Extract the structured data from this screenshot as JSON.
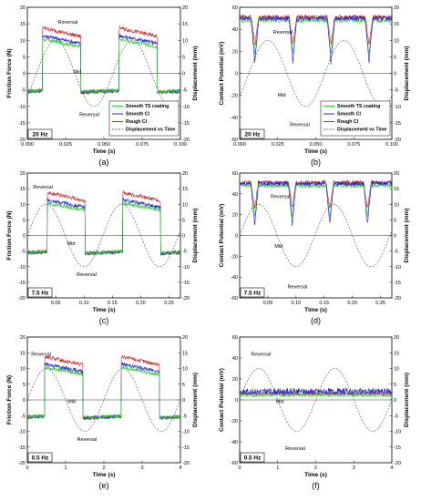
{
  "legend": [
    {
      "label": "Smooth TS coating",
      "color": "#33cc33",
      "dash": false
    },
    {
      "label": "Smooth CI",
      "color": "#2222cc",
      "dash": false
    },
    {
      "label": "Rough CI",
      "color": "#cc2222",
      "dash": false
    },
    {
      "label": "Displacement vs Time",
      "color": "#666666",
      "dash": true
    }
  ],
  "chart_data": [
    {
      "id": "a",
      "type": "line",
      "panel_label": "(a)",
      "freq_label": "20 Hz",
      "kind": "friction",
      "xlabel": "Time (s)",
      "ylabel": "Friction Force (N)",
      "y2label": "Displacement (mm)",
      "xlim": [
        0,
        0.1
      ],
      "ylim": [
        -20,
        20
      ],
      "y2lim": [
        -20,
        20
      ],
      "xticks": [
        "0.000",
        "0.025",
        "0.050",
        "0.075",
        "0.100"
      ],
      "yticks": [
        "-20",
        "-15",
        "-10",
        "-5",
        "0",
        "5",
        "10",
        "15",
        "20"
      ],
      "y2ticks": [
        "-20",
        "-15",
        "-10",
        "-5",
        "0",
        "5",
        "10",
        "15",
        "20"
      ],
      "period": 0.05,
      "disp_amp": 10,
      "phase": 0.006,
      "annotations": [
        {
          "text": "Reversal",
          "x": 0.02,
          "y": 15
        },
        {
          "text": "Mid",
          "x": 0.03,
          "y": 0
        },
        {
          "text": "Reversal",
          "x": 0.034,
          "y": -13
        }
      ],
      "legend": true
    },
    {
      "id": "b",
      "type": "line",
      "panel_label": "(b)",
      "freq_label": "20 Hz",
      "kind": "potential",
      "xlabel": "Time (s)",
      "ylabel": "Contact Potential (mV)",
      "y2label": "Displacement (mm)",
      "xlim": [
        0,
        0.1
      ],
      "ylim": [
        -60,
        60
      ],
      "y2lim": [
        -20,
        20
      ],
      "xticks": [
        "0.000",
        "0.025",
        "0.050",
        "0.075",
        "0.100"
      ],
      "yticks": [
        "-60",
        "-40",
        "-20",
        "0",
        "20",
        "40",
        "60"
      ],
      "y2ticks": [
        "-20",
        "-15",
        "-10",
        "-5",
        "0",
        "5",
        "10",
        "15",
        "20"
      ],
      "period": 0.05,
      "disp_amp": 10,
      "phase": 0.006,
      "annotations": [
        {
          "text": "Reversal",
          "x": 0.022,
          "y": 12
        },
        {
          "text": "Mid",
          "x": 0.025,
          "y": -7
        },
        {
          "text": "Reversal",
          "x": 0.033,
          "y": -16
        }
      ],
      "legend": true
    },
    {
      "id": "c",
      "type": "line",
      "panel_label": "(c)",
      "freq_label": "7.5 Hz",
      "kind": "friction",
      "xlabel": "Time (s)",
      "ylabel": "Friction Force (N)",
      "y2label": "Displacement (mm)",
      "xlim": [
        0,
        0.27
      ],
      "ylim": [
        -20,
        20
      ],
      "y2lim": [
        -20,
        20
      ],
      "xticks": [
        "0.05",
        "0.10",
        "0.15",
        "0.20",
        "0.25"
      ],
      "yticks": [
        "-20",
        "-15",
        "-10",
        "-5",
        "0",
        "5",
        "10",
        "15",
        "20"
      ],
      "y2ticks": [
        "-20",
        "-15",
        "-10",
        "-5",
        "0",
        "5",
        "10",
        "15",
        "20"
      ],
      "period": 0.1333,
      "disp_amp": 10,
      "phase": 0.0,
      "annotations": [
        {
          "text": "Reversal",
          "x": 0.01,
          "y": 15
        },
        {
          "text": "Mid",
          "x": 0.07,
          "y": -3
        },
        {
          "text": "Reversal",
          "x": 0.087,
          "y": -13
        }
      ],
      "legend": false
    },
    {
      "id": "d",
      "type": "line",
      "panel_label": "(d)",
      "freq_label": "7.5 Hz",
      "kind": "potential",
      "xlabel": "Time (s)",
      "ylabel": "Contact Potential (mV)",
      "y2label": "Displacement (mm)",
      "xlim": [
        0,
        0.27
      ],
      "ylim": [
        -60,
        60
      ],
      "y2lim": [
        -20,
        20
      ],
      "xticks": [
        "0.05",
        "0.10",
        "0.15",
        "0.20",
        "0.25"
      ],
      "yticks": [
        "-60",
        "-40",
        "-20",
        "0",
        "20",
        "40",
        "60"
      ],
      "y2ticks": [
        "-20",
        "-15",
        "-10",
        "-5",
        "0",
        "5",
        "10",
        "15",
        "20"
      ],
      "period": 0.1333,
      "disp_amp": 10,
      "phase": 0.0,
      "annotations": [
        {
          "text": "Reversal",
          "x": 0.055,
          "y": 12
        },
        {
          "text": "Mid",
          "x": 0.062,
          "y": -4
        },
        {
          "text": "Reversal",
          "x": 0.085,
          "y": -17
        }
      ],
      "legend": false
    },
    {
      "id": "e",
      "type": "line",
      "panel_label": "(e)",
      "freq_label": "0.5 Hz",
      "kind": "friction",
      "xlabel": "Time (s)",
      "ylabel": "Friction Force (N)",
      "y2label": "Displacement (mm)",
      "xlim": [
        0,
        4
      ],
      "ylim": [
        -20,
        20
      ],
      "y2lim": [
        -20,
        20
      ],
      "xticks": [
        "0",
        "1",
        "2",
        "3",
        "4"
      ],
      "yticks": [
        "-20",
        "-15",
        "-10",
        "-5",
        "0",
        "5",
        "10",
        "15",
        "20"
      ],
      "y2ticks": [
        "-20",
        "-15",
        "-10",
        "-5",
        "0",
        "5",
        "10",
        "15",
        "20"
      ],
      "period": 2.0,
      "disp_amp": 10,
      "phase": 0.0,
      "annotations": [
        {
          "text": "Reversal",
          "x": 0.1,
          "y": 14
        },
        {
          "text": "Mid",
          "x": 1.05,
          "y": -1
        },
        {
          "text": "Reversal",
          "x": 1.3,
          "y": -13
        }
      ],
      "legend": false
    },
    {
      "id": "f",
      "type": "line",
      "panel_label": "(f)",
      "freq_label": "0.5 Hz",
      "kind": "potential_flat",
      "xlabel": "Time (s)",
      "ylabel": "Contact Potential (mV)",
      "y2label": "Displacement (mm)",
      "xlim": [
        0,
        4
      ],
      "ylim": [
        -60,
        60
      ],
      "y2lim": [
        -20,
        20
      ],
      "xticks": [
        "0",
        "1",
        "2",
        "3",
        "4"
      ],
      "yticks": [
        "-60",
        "-40",
        "-20",
        "0",
        "20",
        "40",
        "60"
      ],
      "y2ticks": [
        "-20",
        "-15",
        "-10",
        "-5",
        "0",
        "5",
        "10",
        "15",
        "20"
      ],
      "period": 2.0,
      "disp_amp": 10,
      "phase": 0.0,
      "annotations": [
        {
          "text": "Reversal",
          "x": 0.3,
          "y": 14
        },
        {
          "text": "Mid",
          "x": 0.95,
          "y": -1
        },
        {
          "text": "Reversal",
          "x": 1.2,
          "y": -16
        }
      ],
      "legend": false
    }
  ]
}
